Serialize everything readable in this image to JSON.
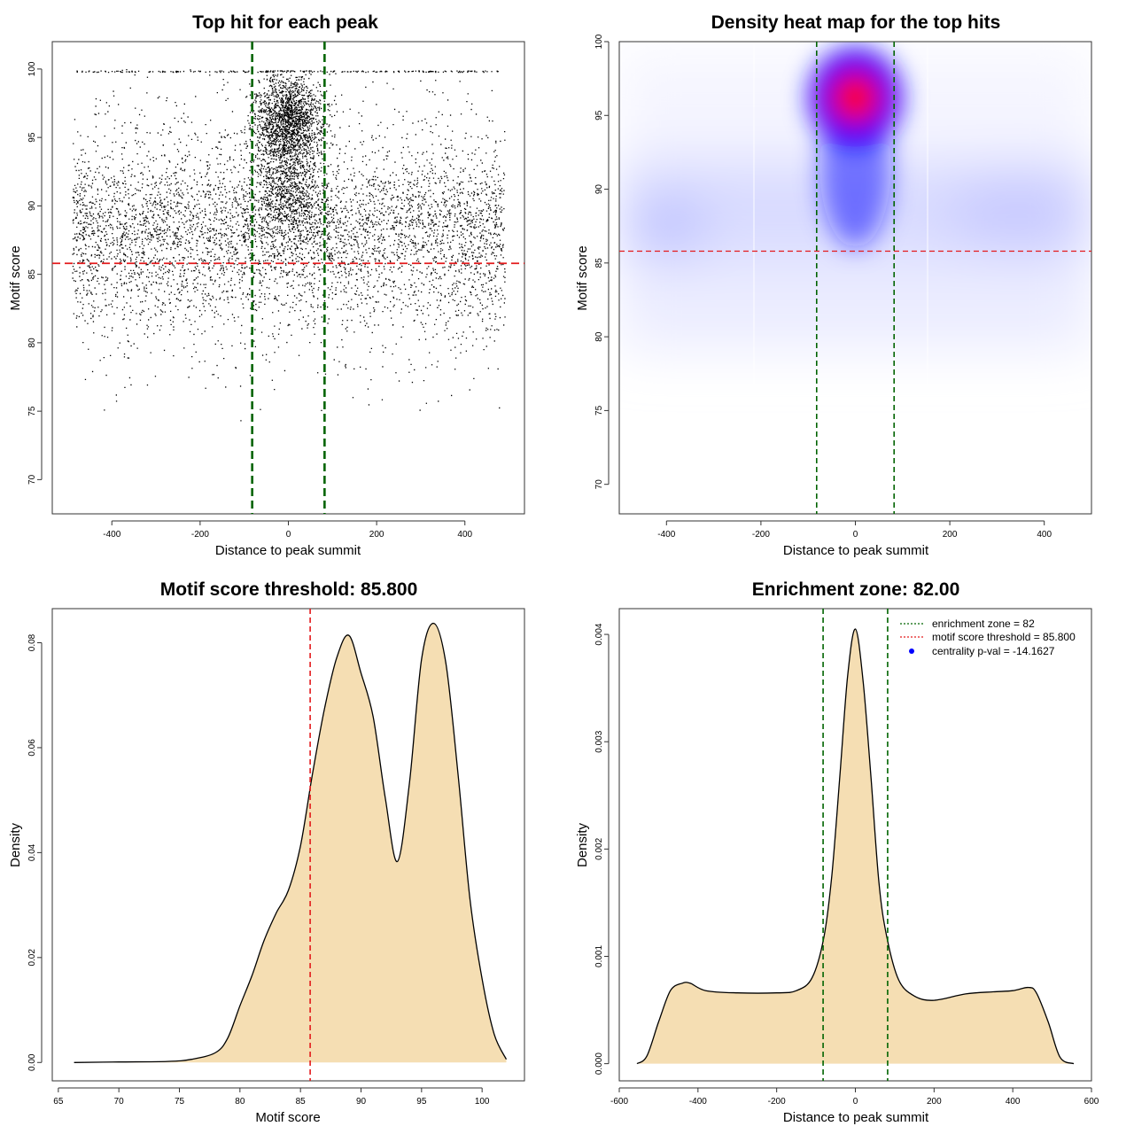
{
  "colors": {
    "threshold_line": "#e31a1c",
    "zone_line": "#006400",
    "density_fill": "#f5deb3",
    "heat_high": "#ff0000",
    "heat_mid": "#0000ff",
    "points": "#000000"
  },
  "chart_data": [
    {
      "id": "scatter",
      "type": "scatter",
      "title": "Top hit for each peak",
      "xlabel": "Distance to peak summit",
      "ylabel": "Motif score",
      "xlim": [
        -535,
        535
      ],
      "ylim": [
        67.5,
        102.0
      ],
      "xticks": [
        -400,
        -200,
        0,
        200,
        400
      ],
      "yticks": [
        70,
        75,
        80,
        85,
        90,
        95,
        100
      ],
      "threshold": 85.8,
      "zone": [
        -82,
        82
      ]
    },
    {
      "id": "heatmap",
      "type": "heatmap",
      "title": "Density heat map for the top hits",
      "xlabel": "Distance to peak summit",
      "ylabel": "Motif score",
      "xlim": [
        -500,
        500
      ],
      "ylim": [
        68.0,
        100.0
      ],
      "xticks": [
        -400,
        -200,
        0,
        200,
        400
      ],
      "yticks": [
        70,
        75,
        80,
        85,
        90,
        95,
        100
      ],
      "threshold": 85.8,
      "zone": [
        -82,
        82
      ],
      "hotspot": {
        "x": 0,
        "y": 96.2
      }
    },
    {
      "id": "score-density",
      "type": "area",
      "title": "Motif score threshold: 85.800",
      "xlabel": "Motif score",
      "ylabel": "Density",
      "xlim": [
        64.5,
        103.5
      ],
      "ylim": [
        -0.0035,
        0.0865
      ],
      "xticks": [
        65,
        70,
        75,
        80,
        85,
        90,
        95,
        100
      ],
      "yticks": [
        0.0,
        0.02,
        0.04,
        0.06,
        0.08
      ],
      "ytick_labels": [
        "0.00",
        "0.02",
        "0.04",
        "0.06",
        "0.08"
      ],
      "threshold": 85.8,
      "x": [
        66.3,
        70,
        74,
        76,
        78,
        79,
        80,
        81,
        82,
        83,
        84,
        85,
        86,
        87,
        88,
        89,
        90,
        91,
        92,
        93,
        94,
        95,
        96,
        97,
        98,
        99,
        100,
        101,
        102
      ],
      "y": [
        0,
        0.0001,
        0.0002,
        0.0006,
        0.0019,
        0.0047,
        0.0108,
        0.0166,
        0.0233,
        0.0285,
        0.0328,
        0.0413,
        0.0551,
        0.0676,
        0.0772,
        0.0814,
        0.0742,
        0.0659,
        0.0505,
        0.0383,
        0.0533,
        0.0768,
        0.0837,
        0.0762,
        0.0553,
        0.0311,
        0.0159,
        0.0054,
        0.0006
      ]
    },
    {
      "id": "distance-density",
      "type": "area",
      "title": "Enrichment zone: 82.00",
      "xlabel": "Distance to peak summit",
      "ylabel": "Density",
      "xlim": [
        -600,
        600
      ],
      "ylim": [
        -0.00016,
        0.00424
      ],
      "xticks": [
        -600,
        -400,
        -200,
        0,
        200,
        400,
        600
      ],
      "yticks": [
        0.0,
        0.001,
        0.002,
        0.003,
        0.004
      ],
      "ytick_labels": [
        "0.000",
        "0.001",
        "0.002",
        "0.003",
        "0.004"
      ],
      "zone": [
        -82,
        82
      ],
      "x": [
        -555,
        -530,
        -500,
        -470,
        -440,
        -420,
        -380,
        -300,
        -200,
        -150,
        -110,
        -80,
        -60,
        -40,
        -20,
        0,
        20,
        40,
        60,
        80,
        110,
        150,
        200,
        280,
        350,
        400,
        440,
        460,
        490,
        520,
        555
      ],
      "y": [
        0,
        7e-05,
        0.00039,
        0.00068,
        0.00075,
        0.00075,
        0.00068,
        0.00066,
        0.00066,
        0.00068,
        0.0008,
        0.00118,
        0.00175,
        0.00265,
        0.0036,
        0.00405,
        0.00355,
        0.00265,
        0.00168,
        0.00118,
        0.00078,
        0.00063,
        0.00059,
        0.00065,
        0.00067,
        0.00068,
        0.00071,
        0.00066,
        0.00039,
        6e-05,
        0
      ]
    }
  ],
  "legend": {
    "items": [
      {
        "label": "enrichment zone = 82",
        "kind": "line",
        "color": "#006400"
      },
      {
        "label": "motif score threshold = 85.800",
        "kind": "line",
        "color": "#e31a1c"
      },
      {
        "label": "centrality p-val = -14.1627",
        "kind": "dot",
        "color": "#0000ff"
      }
    ]
  }
}
